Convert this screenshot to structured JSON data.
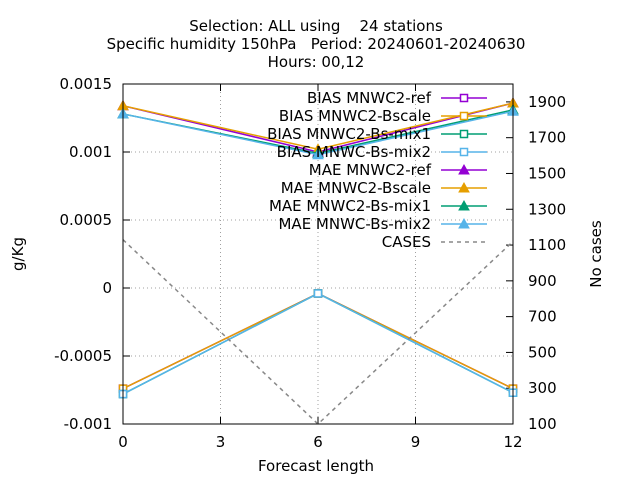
{
  "chart_data": {
    "type": "line",
    "title_lines": [
      "Selection: ALL using    24 stations",
      "Specific humidity 150hPa   Period: 20240601-20240630",
      "Hours: 00,12"
    ],
    "xlabel": "Forecast length",
    "ylabel": "g/Kg",
    "y2label": "No cases",
    "x": [
      0,
      6,
      12
    ],
    "xlim": [
      0,
      12
    ],
    "xticks": [
      "0",
      "3",
      "6",
      "9",
      "12"
    ],
    "ylim": [
      -0.001,
      0.0015
    ],
    "yticks": [
      "-0.001",
      "-0.0005",
      "0",
      "0.0005",
      "0.001",
      "0.0015"
    ],
    "y2lim": [
      100,
      2000
    ],
    "y2ticks": [
      "100",
      "300",
      "500",
      "700",
      "900",
      "1100",
      "1300",
      "1500",
      "1700",
      "1900"
    ],
    "grid": true,
    "legend_position": "top-right",
    "series": [
      {
        "name": "BIAS MNWC2-ref",
        "color": "#9400d3",
        "marker": "open-square",
        "axis": "y",
        "values": [
          -0.00074,
          -4e-05,
          -0.00074
        ]
      },
      {
        "name": "BIAS MNWC2-Bscale",
        "color": "#e69f00",
        "marker": "open-square",
        "axis": "y",
        "values": [
          -0.00074,
          -4e-05,
          -0.00074
        ]
      },
      {
        "name": "BIAS MNWC2-Bs-mix1",
        "color": "#009e73",
        "marker": "open-square",
        "axis": "y",
        "values": [
          -0.00078,
          -4e-05,
          -0.00077
        ]
      },
      {
        "name": "BIAS MNWC-Bs-mix2",
        "color": "#56b4e9",
        "marker": "open-square",
        "axis": "y",
        "values": [
          -0.00078,
          -4e-05,
          -0.00077
        ]
      },
      {
        "name": "MAE MNWC2-ref",
        "color": "#9400d3",
        "marker": "filled-triangle",
        "axis": "y",
        "values": [
          0.00134,
          0.001,
          0.00136
        ]
      },
      {
        "name": "MAE MNWC2-Bscale",
        "color": "#e69f00",
        "marker": "filled-triangle",
        "axis": "y",
        "values": [
          0.00134,
          0.00102,
          0.00136
        ]
      },
      {
        "name": "MAE MNWC2-Bs-mix1",
        "color": "#009e73",
        "marker": "filled-triangle",
        "axis": "y",
        "values": [
          0.00128,
          0.00099,
          0.00131
        ]
      },
      {
        "name": "MAE MNWC-Bs-mix2",
        "color": "#56b4e9",
        "marker": "filled-triangle",
        "axis": "y",
        "values": [
          0.00128,
          0.00098,
          0.0013
        ]
      },
      {
        "name": "CASES",
        "color": "#888888",
        "marker": "none",
        "dash": "dashed",
        "axis": "y2",
        "values": [
          1130,
          100,
          1120
        ]
      }
    ]
  }
}
